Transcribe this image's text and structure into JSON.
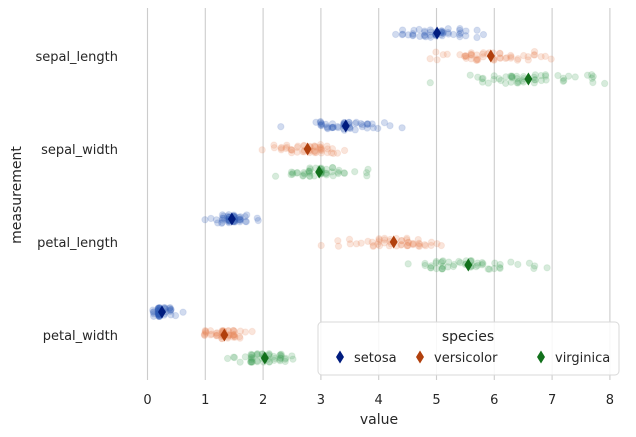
{
  "chart_data": {
    "type": "scatter",
    "subtype": "strip-with-point-estimate",
    "title": "",
    "xlabel": "value",
    "ylabel": "measurement",
    "xlim": [
      -0.1,
      8.1
    ],
    "xticks": [
      0,
      1,
      2,
      3,
      4,
      5,
      6,
      7,
      8
    ],
    "categories": [
      "sepal_length",
      "sepal_width",
      "petal_length",
      "petal_width"
    ],
    "grid": "vertical",
    "legend": {
      "title": "species",
      "placement": "lower-right"
    },
    "series": [
      {
        "name": "setosa",
        "color": "#2e5bb8",
        "marker_color": "#001c7f",
        "means": [
          5.01,
          3.43,
          1.46,
          0.25
        ],
        "values": [
          [
            4.3,
            4.4,
            4.4,
            4.4,
            4.5,
            4.6,
            4.6,
            4.6,
            4.6,
            4.7,
            4.7,
            4.8,
            4.8,
            4.8,
            4.8,
            4.8,
            4.9,
            4.9,
            4.9,
            4.9,
            5.0,
            5.0,
            5.0,
            5.0,
            5.0,
            5.0,
            5.0,
            5.0,
            5.1,
            5.1,
            5.1,
            5.1,
            5.1,
            5.1,
            5.1,
            5.1,
            5.2,
            5.2,
            5.2,
            5.3,
            5.4,
            5.4,
            5.4,
            5.4,
            5.4,
            5.5,
            5.5,
            5.7,
            5.7,
            5.8
          ],
          [
            2.3,
            2.9,
            3.0,
            3.0,
            3.0,
            3.0,
            3.0,
            3.0,
            3.1,
            3.1,
            3.1,
            3.1,
            3.2,
            3.2,
            3.2,
            3.2,
            3.2,
            3.3,
            3.3,
            3.4,
            3.4,
            3.4,
            3.4,
            3.4,
            3.4,
            3.4,
            3.4,
            3.4,
            3.5,
            3.5,
            3.5,
            3.5,
            3.5,
            3.5,
            3.6,
            3.6,
            3.6,
            3.7,
            3.7,
            3.7,
            3.8,
            3.8,
            3.8,
            3.8,
            3.9,
            3.9,
            4.0,
            4.1,
            4.2,
            4.4
          ],
          [
            1.0,
            1.1,
            1.2,
            1.2,
            1.3,
            1.3,
            1.3,
            1.3,
            1.3,
            1.3,
            1.3,
            1.4,
            1.4,
            1.4,
            1.4,
            1.4,
            1.4,
            1.4,
            1.4,
            1.4,
            1.4,
            1.4,
            1.4,
            1.4,
            1.5,
            1.5,
            1.5,
            1.5,
            1.5,
            1.5,
            1.5,
            1.5,
            1.5,
            1.5,
            1.5,
            1.5,
            1.5,
            1.6,
            1.6,
            1.6,
            1.6,
            1.6,
            1.6,
            1.6,
            1.7,
            1.7,
            1.7,
            1.7,
            1.9,
            1.9
          ],
          [
            0.1,
            0.1,
            0.1,
            0.1,
            0.1,
            0.2,
            0.2,
            0.2,
            0.2,
            0.2,
            0.2,
            0.2,
            0.2,
            0.2,
            0.2,
            0.2,
            0.2,
            0.2,
            0.2,
            0.2,
            0.2,
            0.2,
            0.2,
            0.2,
            0.2,
            0.2,
            0.2,
            0.2,
            0.2,
            0.2,
            0.2,
            0.2,
            0.2,
            0.2,
            0.3,
            0.3,
            0.3,
            0.3,
            0.3,
            0.3,
            0.3,
            0.4,
            0.4,
            0.4,
            0.4,
            0.4,
            0.4,
            0.4,
            0.5,
            0.6
          ]
        ]
      },
      {
        "name": "versicolor",
        "color": "#e8875a",
        "marker_color": "#b1400d",
        "means": [
          5.94,
          2.77,
          4.26,
          1.33
        ],
        "values": [
          [
            4.9,
            5.0,
            5.0,
            5.1,
            5.2,
            5.4,
            5.5,
            5.5,
            5.5,
            5.5,
            5.5,
            5.6,
            5.6,
            5.6,
            5.6,
            5.6,
            5.7,
            5.7,
            5.7,
            5.7,
            5.7,
            5.8,
            5.8,
            5.8,
            5.9,
            5.9,
            6.0,
            6.0,
            6.0,
            6.0,
            6.1,
            6.1,
            6.1,
            6.1,
            6.2,
            6.2,
            6.3,
            6.3,
            6.3,
            6.4,
            6.4,
            6.5,
            6.6,
            6.6,
            6.7,
            6.7,
            6.7,
            6.8,
            6.9,
            7.0
          ],
          [
            2.0,
            2.2,
            2.2,
            2.3,
            2.3,
            2.3,
            2.4,
            2.4,
            2.4,
            2.5,
            2.5,
            2.5,
            2.5,
            2.6,
            2.6,
            2.6,
            2.7,
            2.7,
            2.7,
            2.7,
            2.7,
            2.8,
            2.8,
            2.8,
            2.8,
            2.8,
            2.8,
            2.9,
            2.9,
            2.9,
            2.9,
            2.9,
            2.9,
            2.9,
            3.0,
            3.0,
            3.0,
            3.0,
            3.0,
            3.0,
            3.0,
            3.0,
            3.1,
            3.1,
            3.1,
            3.2,
            3.2,
            3.2,
            3.3,
            3.4
          ],
          [
            3.0,
            3.3,
            3.3,
            3.5,
            3.5,
            3.6,
            3.7,
            3.8,
            3.9,
            3.9,
            3.9,
            4.0,
            4.0,
            4.0,
            4.0,
            4.0,
            4.1,
            4.1,
            4.1,
            4.2,
            4.2,
            4.2,
            4.2,
            4.3,
            4.3,
            4.4,
            4.4,
            4.4,
            4.4,
            4.5,
            4.5,
            4.5,
            4.5,
            4.5,
            4.5,
            4.5,
            4.6,
            4.6,
            4.6,
            4.7,
            4.7,
            4.7,
            4.7,
            4.7,
            4.8,
            4.8,
            4.9,
            4.9,
            5.0,
            5.1
          ],
          [
            1.0,
            1.0,
            1.0,
            1.0,
            1.0,
            1.0,
            1.0,
            1.1,
            1.1,
            1.1,
            1.2,
            1.2,
            1.2,
            1.2,
            1.2,
            1.3,
            1.3,
            1.3,
            1.3,
            1.3,
            1.3,
            1.3,
            1.3,
            1.3,
            1.3,
            1.3,
            1.3,
            1.3,
            1.4,
            1.4,
            1.4,
            1.4,
            1.4,
            1.4,
            1.4,
            1.5,
            1.5,
            1.5,
            1.5,
            1.5,
            1.5,
            1.5,
            1.5,
            1.5,
            1.5,
            1.6,
            1.6,
            1.6,
            1.7,
            1.8
          ]
        ]
      },
      {
        "name": "virginica",
        "color": "#4aa35e",
        "marker_color": "#12711c",
        "means": [
          6.59,
          2.97,
          5.55,
          2.03
        ],
        "values": [
          [
            4.9,
            5.6,
            5.7,
            5.8,
            5.8,
            5.8,
            5.9,
            6.0,
            6.0,
            6.1,
            6.1,
            6.2,
            6.2,
            6.3,
            6.3,
            6.3,
            6.3,
            6.3,
            6.3,
            6.4,
            6.4,
            6.4,
            6.4,
            6.4,
            6.5,
            6.5,
            6.5,
            6.5,
            6.7,
            6.7,
            6.7,
            6.7,
            6.7,
            6.8,
            6.8,
            6.9,
            6.9,
            6.9,
            7.1,
            7.2,
            7.2,
            7.2,
            7.3,
            7.4,
            7.6,
            7.7,
            7.7,
            7.7,
            7.7,
            7.9
          ],
          [
            2.2,
            2.5,
            2.5,
            2.5,
            2.5,
            2.6,
            2.6,
            2.7,
            2.7,
            2.7,
            2.7,
            2.8,
            2.8,
            2.8,
            2.8,
            2.8,
            2.8,
            2.8,
            2.8,
            2.9,
            2.9,
            3.0,
            3.0,
            3.0,
            3.0,
            3.0,
            3.0,
            3.0,
            3.0,
            3.0,
            3.0,
            3.0,
            3.0,
            3.1,
            3.1,
            3.1,
            3.1,
            3.2,
            3.2,
            3.2,
            3.2,
            3.3,
            3.3,
            3.3,
            3.4,
            3.4,
            3.6,
            3.8,
            3.8,
            3.8
          ],
          [
            4.5,
            4.8,
            4.8,
            4.9,
            4.9,
            4.9,
            5.0,
            5.0,
            5.0,
            5.1,
            5.1,
            5.1,
            5.1,
            5.1,
            5.1,
            5.1,
            5.2,
            5.2,
            5.3,
            5.3,
            5.4,
            5.4,
            5.5,
            5.5,
            5.5,
            5.6,
            5.6,
            5.6,
            5.6,
            5.6,
            5.6,
            5.7,
            5.7,
            5.7,
            5.8,
            5.8,
            5.8,
            5.9,
            5.9,
            6.0,
            6.0,
            6.1,
            6.1,
            6.1,
            6.3,
            6.4,
            6.6,
            6.7,
            6.7,
            6.9
          ],
          [
            1.4,
            1.5,
            1.5,
            1.6,
            1.7,
            1.8,
            1.8,
            1.8,
            1.8,
            1.8,
            1.8,
            1.8,
            1.8,
            1.8,
            1.8,
            1.8,
            1.8,
            1.9,
            1.9,
            1.9,
            1.9,
            1.9,
            2.0,
            2.0,
            2.0,
            2.0,
            2.0,
            2.0,
            2.1,
            2.1,
            2.1,
            2.1,
            2.1,
            2.1,
            2.2,
            2.2,
            2.2,
            2.3,
            2.3,
            2.3,
            2.3,
            2.3,
            2.3,
            2.3,
            2.3,
            2.4,
            2.4,
            2.4,
            2.5,
            2.5
          ]
        ]
      }
    ]
  }
}
